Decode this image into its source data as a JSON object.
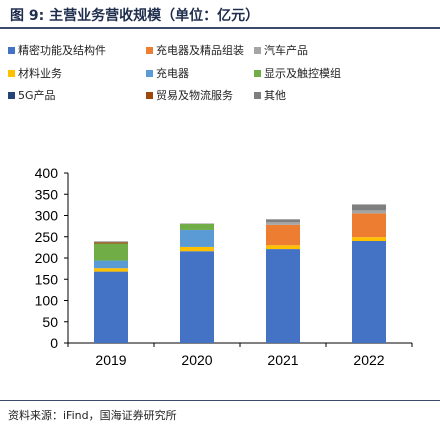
{
  "figure": {
    "title": "图 9:  主营业务营收规模（单位：亿元）",
    "source": "资料来源：iFind，国海证券研究所"
  },
  "chart_data": {
    "type": "bar",
    "stacked": true,
    "title": "图 9:  主营业务营收规模（单位：亿元）",
    "xlabel": "",
    "ylabel": "",
    "categories": [
      "2019",
      "2020",
      "2021",
      "2022"
    ],
    "ylim": [
      0,
      400
    ],
    "yticks": [
      0,
      50,
      100,
      150,
      200,
      250,
      300,
      350,
      400
    ],
    "grid": false,
    "legend_position": "top",
    "series": [
      {
        "name": "精密功能及结构件",
        "color": "#4472c4",
        "values": [
          168,
          216,
          221,
          240
        ]
      },
      {
        "name": "材料业务",
        "color": "#ffc000",
        "values": [
          8,
          10,
          9,
          9
        ]
      },
      {
        "name": "充电器",
        "color": "#5b9bd5",
        "values": [
          18,
          40,
          0,
          0
        ]
      },
      {
        "name": "显示及触控模组",
        "color": "#70ad47",
        "values": [
          40,
          14,
          0,
          0
        ]
      },
      {
        "name": "充电器及精品组装",
        "color": "#ed7d31",
        "values": [
          0,
          0,
          48,
          56
        ]
      },
      {
        "name": "汽车产品",
        "color": "#a5a5a5",
        "values": [
          0,
          0,
          6,
          7
        ]
      },
      {
        "name": "5G产品",
        "color": "#264478",
        "values": [
          0,
          0,
          0,
          0
        ]
      },
      {
        "name": "贸易及物流服务",
        "color": "#9e480e",
        "values": [
          3,
          0,
          0,
          0
        ]
      },
      {
        "name": "其他",
        "color": "#7f7f7f",
        "values": [
          2,
          1,
          7,
          14
        ]
      }
    ],
    "stack_order": [
      "精密功能及结构件",
      "材料业务",
      "充电器",
      "充电器及精品组装",
      "汽车产品",
      "显示及触控模组",
      "贸易及物流服务",
      "5G产品",
      "其他"
    ],
    "legend_order": [
      "精密功能及结构件",
      "充电器及精品组装",
      "汽车产品",
      "材料业务",
      "充电器",
      "显示及触控模组",
      "5G产品",
      "贸易及物流服务",
      "其他"
    ]
  }
}
